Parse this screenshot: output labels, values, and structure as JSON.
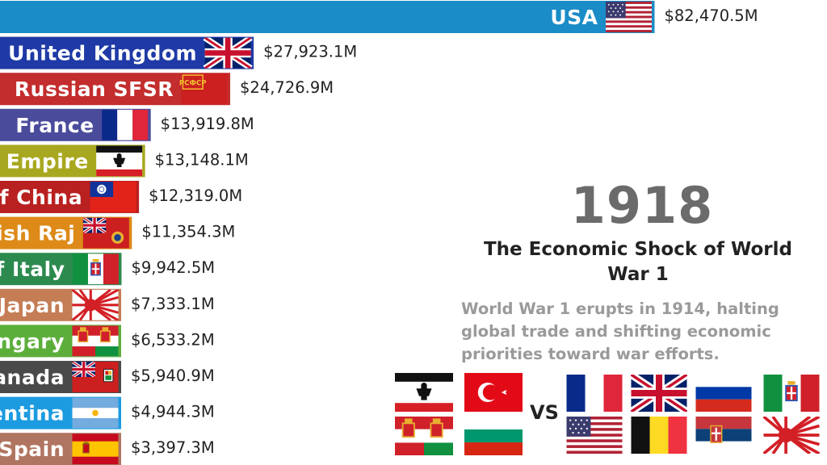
{
  "chart_data": {
    "type": "bar",
    "orientation": "horizontal",
    "categories": [
      "USA",
      "United Kingdom",
      "Russian SFSR",
      "France",
      "German Empire",
      "Republic of China",
      "British Raj",
      "Kingdom of Italy",
      "Empire of Japan",
      "Austria-Hungary",
      "Canada",
      "Argentina",
      "Spain"
    ],
    "values": [
      82470.5,
      27923.1,
      24726.9,
      13919.8,
      13148.1,
      12319.0,
      11354.3,
      9942.5,
      7333.1,
      6533.2,
      5940.9,
      4944.3,
      3397.3
    ],
    "value_labels": [
      "$82,470.5M",
      "$27,923.1M",
      "$24,726.9M",
      "$13,919.8M",
      "$13,148.1M",
      "$12,319.0M",
      "$11,354.3M",
      "$9,942.5M",
      "$7,333.1M",
      "$6,533.2M",
      "$5,940.9M",
      "$4,944.3M",
      "$3,397.3M"
    ],
    "colors": [
      "#1a8cc7",
      "#1f3aa6",
      "#c32d2d",
      "#4b4b9c",
      "#a8a820",
      "#b92020",
      "#dd8a18",
      "#2d8a4f",
      "#c47d55",
      "#5cae3b",
      "#4a4a4a",
      "#1d9be0",
      "#b07560"
    ],
    "flags": [
      "usa",
      "uk",
      "russian-sfsr",
      "france",
      "german-empire",
      "roc",
      "british-raj",
      "italy",
      "japan",
      "austria-hungary",
      "canada",
      "argentina",
      "spain"
    ]
  },
  "year": "1918",
  "title": "The Economic Shock of World War 1",
  "description": "World War 1 erupts in 1914, halting global trade and shifting economic priorities toward war efforts.",
  "alliances": {
    "central": [
      "german-empire-flag",
      "ottoman-flag",
      "austria-hungary-flag",
      "bulgaria-flag"
    ],
    "vs_label": "VS",
    "allies": [
      "france-flag",
      "uk-flag",
      "russia-flag",
      "italy-flag",
      "usa-flag",
      "belgium-flag",
      "serbia-flag",
      "japan-flag"
    ]
  }
}
